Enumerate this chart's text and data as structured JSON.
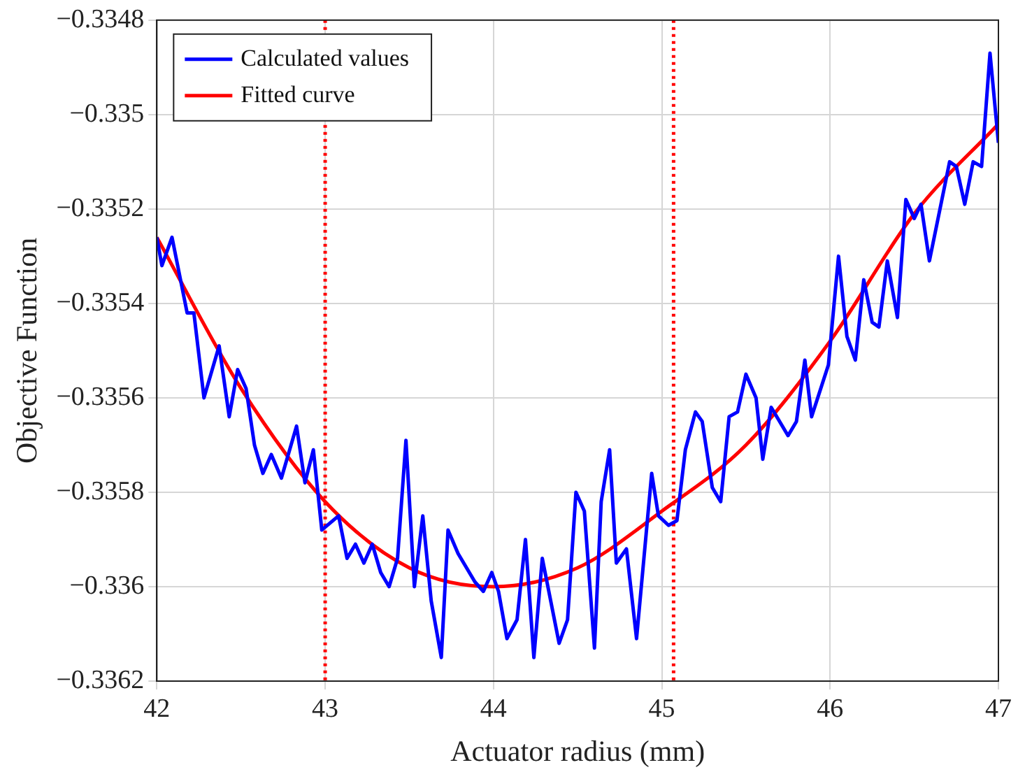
{
  "chart_data": {
    "type": "line",
    "xlabel": "Actuator radius (mm)",
    "ylabel": "Objective Function",
    "xlim": [
      42,
      47
    ],
    "xticks": [
      42,
      43,
      44,
      45,
      46,
      47
    ],
    "ylim": [
      -0.3362,
      -0.3348
    ],
    "yticks": [
      {
        "value": -0.3362,
        "label": "−0.3362"
      },
      {
        "value": -0.336,
        "label": "−0.336"
      },
      {
        "value": -0.3358,
        "label": "−0.3358"
      },
      {
        "value": -0.3356,
        "label": "−0.3356"
      },
      {
        "value": -0.3354,
        "label": "−0.3354"
      },
      {
        "value": -0.3352,
        "label": "−0.3352"
      },
      {
        "value": -0.335,
        "label": "−0.335"
      },
      {
        "value": -0.3348,
        "label": "−0.3348"
      }
    ],
    "grid": true,
    "legend": "top left",
    "marker": "none",
    "line_style": "solid",
    "series": [
      {
        "name": "Calculated values",
        "color": "#0000ff",
        "x": [
          42,
          42.03,
          42.09,
          42.18,
          42.22,
          42.28,
          42.37,
          42.43,
          42.48,
          42.53,
          42.58,
          42.63,
          42.68,
          42.74,
          42.83,
          42.88,
          42.93,
          42.98,
          43.08,
          43.13,
          43.18,
          43.23,
          43.28,
          43.33,
          43.38,
          43.43,
          43.48,
          43.53,
          43.58,
          43.63,
          43.69,
          43.73,
          43.79,
          43.84,
          43.89,
          43.94,
          43.99,
          44.03,
          44.08,
          44.14,
          44.19,
          44.24,
          44.29,
          44.39,
          44.44,
          44.49,
          44.54,
          44.6,
          44.64,
          44.69,
          44.73,
          44.79,
          44.85,
          44.94,
          44.98,
          45.04,
          45.09,
          45.14,
          45.2,
          45.24,
          45.3,
          45.35,
          45.4,
          45.45,
          45.5,
          45.56,
          45.6,
          45.65,
          45.75,
          45.8,
          45.85,
          45.89,
          45.99,
          46.05,
          46.1,
          46.15,
          46.2,
          46.25,
          46.29,
          46.34,
          46.4,
          46.45,
          46.5,
          46.54,
          46.59,
          46.71,
          46.75,
          46.8,
          46.85,
          46.9,
          46.95,
          47
        ],
        "values": [
          -0.33526,
          -0.33532,
          -0.33526,
          -0.33542,
          -0.33542,
          -0.3356,
          -0.33549,
          -0.33564,
          -0.33554,
          -0.33558,
          -0.3357,
          -0.33576,
          -0.33572,
          -0.33577,
          -0.33566,
          -0.33578,
          -0.33571,
          -0.33588,
          -0.33585,
          -0.33594,
          -0.33591,
          -0.33595,
          -0.33591,
          -0.33597,
          -0.336,
          -0.33594,
          -0.33569,
          -0.336,
          -0.33585,
          -0.33603,
          -0.33615,
          -0.33588,
          -0.33593,
          -0.33596,
          -0.33599,
          -0.33601,
          -0.33597,
          -0.33601,
          -0.33611,
          -0.33607,
          -0.3359,
          -0.33615,
          -0.33594,
          -0.33612,
          -0.33607,
          -0.3358,
          -0.33584,
          -0.33613,
          -0.33582,
          -0.33571,
          -0.33595,
          -0.33592,
          -0.33611,
          -0.33576,
          -0.33585,
          -0.33587,
          -0.33586,
          -0.33571,
          -0.33563,
          -0.33565,
          -0.33579,
          -0.33582,
          -0.33564,
          -0.33563,
          -0.33555,
          -0.3356,
          -0.33573,
          -0.33562,
          -0.33568,
          -0.33565,
          -0.33552,
          -0.33564,
          -0.33553,
          -0.3353,
          -0.33547,
          -0.33552,
          -0.33535,
          -0.33544,
          -0.33545,
          -0.33531,
          -0.33543,
          -0.33518,
          -0.33522,
          -0.33519,
          -0.33531,
          -0.3351,
          -0.33511,
          -0.33519,
          -0.3351,
          -0.33511,
          -0.33487,
          -0.33506
        ]
      },
      {
        "name": "Fitted curve",
        "color": "#ff0000",
        "x": [
          42,
          42.5,
          43,
          43.5,
          44,
          44.5,
          45,
          45.5,
          46,
          46.5,
          47
        ],
        "values": [
          -0.33526,
          -0.33558,
          -0.33582,
          -0.33596,
          -0.336,
          -0.33596,
          -0.33584,
          -0.3357,
          -0.33548,
          -0.33521,
          -0.33502
        ]
      }
    ],
    "ref_lines": [
      {
        "axis": "x",
        "value": 43,
        "color": "#ff0000",
        "line_style": "dotted"
      },
      {
        "axis": "x",
        "value": 45.07,
        "color": "#ff0000",
        "line_style": "dotted"
      }
    ]
  }
}
